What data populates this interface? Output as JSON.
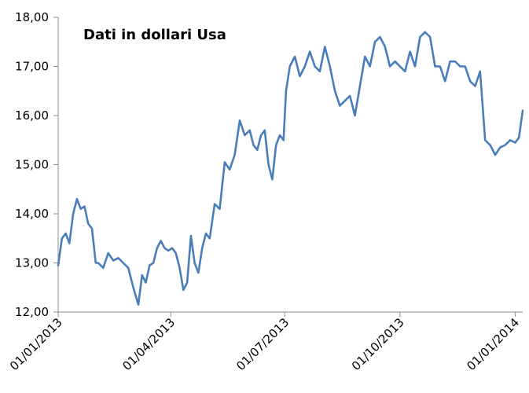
{
  "chart_data": {
    "type": "line",
    "title": "",
    "annotation": "Dati in dollari Usa",
    "xlabel": "",
    "ylabel": "",
    "ylim": [
      12.0,
      18.0
    ],
    "yticks": [
      "12,00",
      "13,00",
      "14,00",
      "15,00",
      "16,00",
      "17,00",
      "18,00"
    ],
    "yticks_values": [
      12,
      13,
      14,
      15,
      16,
      17,
      18
    ],
    "xticks": [
      "01/01/2013",
      "01/04/2013",
      "01/07/2013",
      "01/10/2013",
      "01/01/2014"
    ],
    "xticks_values": [
      "2013-01-01",
      "2013-04-01",
      "2013-07-01",
      "2013-10-01",
      "2014-01-01"
    ],
    "x_range": [
      "2013-01-01",
      "2014-01-07"
    ],
    "grid": false,
    "legend": "none",
    "line_color": "#4a7ebb",
    "series": [
      {
        "x": [
          "2013-01-01",
          "2013-01-04",
          "2013-01-07",
          "2013-01-10",
          "2013-01-13",
          "2013-01-16",
          "2013-01-19",
          "2013-01-22",
          "2013-01-25",
          "2013-01-28",
          "2013-01-31",
          "2013-02-02",
          "2013-02-06",
          "2013-02-10",
          "2013-02-14",
          "2013-02-18",
          "2013-02-22",
          "2013-02-26",
          "2013-03-02",
          "2013-03-06",
          "2013-03-09",
          "2013-03-12",
          "2013-03-15",
          "2013-03-18",
          "2013-03-21",
          "2013-03-24",
          "2013-03-27",
          "2013-03-30",
          "2013-04-02",
          "2013-04-05",
          "2013-04-08",
          "2013-04-11",
          "2013-04-14",
          "2013-04-17",
          "2013-04-20",
          "2013-04-23",
          "2013-04-26",
          "2013-04-29",
          "2013-05-02",
          "2013-05-06",
          "2013-05-10",
          "2013-05-14",
          "2013-05-18",
          "2013-05-22",
          "2013-05-26",
          "2013-05-30",
          "2013-06-03",
          "2013-06-06",
          "2013-06-09",
          "2013-06-12",
          "2013-06-15",
          "2013-06-18",
          "2013-06-21",
          "2013-06-24",
          "2013-06-27",
          "2013-06-30",
          "2013-07-02",
          "2013-07-05",
          "2013-07-09",
          "2013-07-13",
          "2013-07-17",
          "2013-07-21",
          "2013-07-25",
          "2013-07-29",
          "2013-08-02",
          "2013-08-06",
          "2013-08-10",
          "2013-08-14",
          "2013-08-18",
          "2013-08-22",
          "2013-08-26",
          "2013-08-30",
          "2013-09-03",
          "2013-09-07",
          "2013-09-11",
          "2013-09-15",
          "2013-09-19",
          "2013-09-23",
          "2013-09-27",
          "2013-10-01",
          "2013-10-05",
          "2013-10-09",
          "2013-10-13",
          "2013-10-17",
          "2013-10-21",
          "2013-10-25",
          "2013-10-29",
          "2013-11-02",
          "2013-11-06",
          "2013-11-10",
          "2013-11-14",
          "2013-11-18",
          "2013-11-22",
          "2013-11-26",
          "2013-11-30",
          "2013-12-04",
          "2013-12-08",
          "2013-12-12",
          "2013-12-16",
          "2013-12-20",
          "2013-12-24",
          "2013-12-28",
          "2014-01-01",
          "2014-01-04",
          "2014-01-07"
        ],
        "y": [
          12.95,
          13.5,
          13.6,
          13.4,
          14.0,
          14.3,
          14.1,
          14.15,
          13.8,
          13.7,
          13.0,
          13.0,
          12.9,
          13.2,
          13.05,
          13.1,
          13.0,
          12.9,
          12.5,
          12.15,
          12.75,
          12.6,
          12.95,
          13.0,
          13.3,
          13.45,
          13.3,
          13.25,
          13.3,
          13.2,
          12.9,
          12.45,
          12.6,
          13.55,
          13.0,
          12.8,
          13.3,
          13.6,
          13.5,
          14.2,
          14.1,
          15.05,
          14.9,
          15.2,
          15.9,
          15.6,
          15.7,
          15.4,
          15.3,
          15.6,
          15.7,
          15.0,
          14.7,
          15.4,
          15.6,
          15.5,
          16.5,
          17.0,
          17.2,
          16.8,
          17.0,
          17.3,
          17.0,
          16.9,
          17.4,
          17.0,
          16.5,
          16.2,
          16.3,
          16.4,
          16.0,
          16.6,
          17.2,
          17.0,
          17.5,
          17.6,
          17.4,
          17.0,
          17.1,
          17.0,
          16.9,
          17.3,
          17.0,
          17.6,
          17.7,
          17.6,
          17.0,
          17.0,
          16.7,
          17.1,
          17.1,
          17.0,
          17.0,
          16.7,
          16.6,
          16.9,
          15.5,
          15.4,
          15.2,
          15.35,
          15.4,
          15.5,
          15.45,
          15.55,
          16.1
        ]
      }
    ]
  }
}
